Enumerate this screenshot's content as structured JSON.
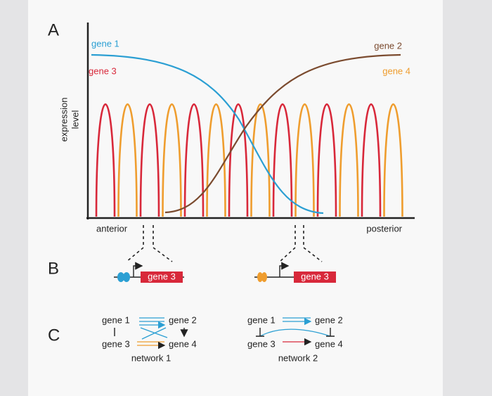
{
  "panel_a": {
    "label": "A",
    "y_axis_label": [
      "expression",
      "level"
    ],
    "curves": [
      {
        "name": "gene 1",
        "color": "#2b9fd3"
      },
      {
        "name": "gene 2",
        "color": "#7b4b2f"
      },
      {
        "name": "gene 3",
        "color": "#d8283a"
      },
      {
        "name": "gene 4",
        "color": "#ef9d2e"
      }
    ],
    "x_axis": {
      "left": "anterior",
      "right": "posterior"
    }
  },
  "panel_b": {
    "label": "B",
    "genes": [
      "gene 3",
      "gene 3"
    ]
  },
  "panel_c": {
    "label": "C",
    "networks": [
      {
        "genes": [
          "gene 1",
          "gene 2",
          "gene 3",
          "gene 4"
        ],
        "title": "network 1"
      },
      {
        "genes": [
          "gene 1",
          "gene 2",
          "gene 3",
          "gene 4"
        ],
        "title": "network 2"
      }
    ]
  }
}
